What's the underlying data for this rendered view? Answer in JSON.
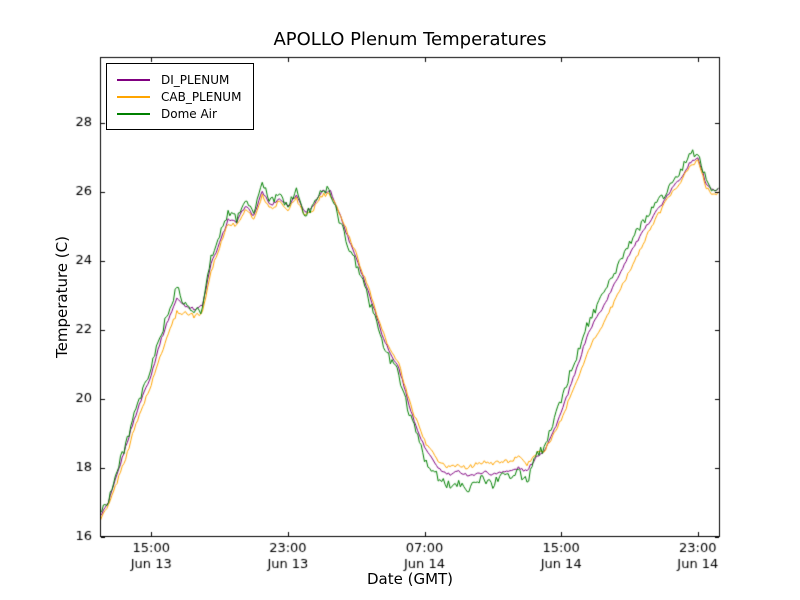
{
  "chart_data": {
    "type": "line",
    "title": "APOLLO Plenum Temperatures",
    "xlabel": "Date (GMT)",
    "ylabel": "Temperature (C)",
    "xlim": [
      0,
      36.3
    ],
    "ylim": [
      16,
      29.9
    ],
    "grid": false,
    "legend_position": "upper-left",
    "axes_color": "#000000",
    "background": "#ffffff",
    "x_axis_note": "x values are hours after Jun 13 12:00 GMT",
    "x_ticks": [
      {
        "t": 3,
        "time": "15:00",
        "date": "Jun 13"
      },
      {
        "t": 11,
        "time": "23:00",
        "date": "Jun 13"
      },
      {
        "t": 19,
        "time": "07:00",
        "date": "Jun 14"
      },
      {
        "t": 27,
        "time": "15:00",
        "date": "Jun 14"
      },
      {
        "t": 35,
        "time": "23:00",
        "date": "Jun 14"
      }
    ],
    "y_ticks": [
      16,
      18,
      20,
      22,
      24,
      26,
      28
    ],
    "series": [
      {
        "name": "DI_PLENUM",
        "color": "#800080",
        "noise": 0.04,
        "seed": 1,
        "points": [
          [
            0,
            16.6
          ],
          [
            0.5,
            17.0
          ],
          [
            1,
            17.8
          ],
          [
            1.5,
            18.6
          ],
          [
            2,
            19.4
          ],
          [
            2.5,
            20.1
          ],
          [
            3,
            20.7
          ],
          [
            3.5,
            21.6
          ],
          [
            4,
            22.3
          ],
          [
            4.5,
            22.9
          ],
          [
            5,
            22.7
          ],
          [
            5.5,
            22.6
          ],
          [
            6,
            22.7
          ],
          [
            6.5,
            23.9
          ],
          [
            7,
            24.5
          ],
          [
            7.5,
            25.2
          ],
          [
            8,
            25.1
          ],
          [
            8.5,
            25.6
          ],
          [
            9,
            25.3
          ],
          [
            9.5,
            26.0
          ],
          [
            10,
            25.6
          ],
          [
            10.5,
            25.8
          ],
          [
            11,
            25.6
          ],
          [
            11.5,
            25.9
          ],
          [
            12,
            25.4
          ],
          [
            12.5,
            25.6
          ],
          [
            13,
            26.0
          ],
          [
            13.5,
            26.0
          ],
          [
            14,
            25.4
          ],
          [
            14.5,
            24.7
          ],
          [
            15,
            24.1
          ],
          [
            15.5,
            23.4
          ],
          [
            16,
            22.7
          ],
          [
            16.5,
            21.9
          ],
          [
            17,
            21.3
          ],
          [
            17.5,
            20.9
          ],
          [
            18,
            20.0
          ],
          [
            18.5,
            19.2
          ],
          [
            19,
            18.6
          ],
          [
            19.5,
            18.2
          ],
          [
            20,
            17.9
          ],
          [
            20.5,
            17.8
          ],
          [
            21,
            17.9
          ],
          [
            21.5,
            17.8
          ],
          [
            22,
            17.8
          ],
          [
            22.5,
            17.9
          ],
          [
            23,
            17.8
          ],
          [
            23.5,
            17.9
          ],
          [
            24,
            17.9
          ],
          [
            24.5,
            18.0
          ],
          [
            25,
            17.9
          ],
          [
            25.5,
            18.3
          ],
          [
            26,
            18.5
          ],
          [
            26.5,
            19.0
          ],
          [
            27,
            19.6
          ],
          [
            27.5,
            20.3
          ],
          [
            28,
            21.0
          ],
          [
            28.5,
            21.8
          ],
          [
            29,
            22.3
          ],
          [
            29.5,
            22.7
          ],
          [
            30,
            23.2
          ],
          [
            30.5,
            23.7
          ],
          [
            31,
            24.2
          ],
          [
            31.5,
            24.6
          ],
          [
            32,
            25.0
          ],
          [
            32.5,
            25.4
          ],
          [
            33,
            25.7
          ],
          [
            33.5,
            26.1
          ],
          [
            34,
            26.4
          ],
          [
            34.5,
            26.8
          ],
          [
            35,
            27.0
          ],
          [
            35.5,
            26.2
          ],
          [
            36,
            26.0
          ],
          [
            36.2,
            26.1
          ]
        ]
      },
      {
        "name": "CAB_PLENUM",
        "color": "#ffa500",
        "noise": 0.06,
        "seed": 2,
        "points": [
          [
            0,
            16.5
          ],
          [
            0.5,
            16.9
          ],
          [
            1,
            17.6
          ],
          [
            1.5,
            18.3
          ],
          [
            2,
            19.1
          ],
          [
            2.5,
            19.8
          ],
          [
            3,
            20.4
          ],
          [
            3.5,
            21.2
          ],
          [
            4,
            21.9
          ],
          [
            4.5,
            22.5
          ],
          [
            5,
            22.5
          ],
          [
            5.5,
            22.4
          ],
          [
            6,
            22.5
          ],
          [
            6.5,
            23.7
          ],
          [
            7,
            24.4
          ],
          [
            7.5,
            25.1
          ],
          [
            8,
            25.0
          ],
          [
            8.5,
            25.5
          ],
          [
            9,
            25.2
          ],
          [
            9.5,
            25.9
          ],
          [
            10,
            25.5
          ],
          [
            10.5,
            25.7
          ],
          [
            11,
            25.5
          ],
          [
            11.5,
            25.8
          ],
          [
            12,
            25.3
          ],
          [
            12.5,
            25.5
          ],
          [
            13,
            25.9
          ],
          [
            13.5,
            25.9
          ],
          [
            14,
            25.4
          ],
          [
            14.5,
            24.8
          ],
          [
            15,
            24.2
          ],
          [
            15.5,
            23.5
          ],
          [
            16,
            22.8
          ],
          [
            16.5,
            22.0
          ],
          [
            17,
            21.4
          ],
          [
            17.5,
            21.0
          ],
          [
            18,
            20.1
          ],
          [
            18.5,
            19.4
          ],
          [
            19,
            18.8
          ],
          [
            19.5,
            18.4
          ],
          [
            20,
            18.1
          ],
          [
            20.5,
            18.0
          ],
          [
            21,
            18.1
          ],
          [
            21.5,
            18.0
          ],
          [
            22,
            18.1
          ],
          [
            22.5,
            18.2
          ],
          [
            23,
            18.1
          ],
          [
            23.5,
            18.2
          ],
          [
            24,
            18.2
          ],
          [
            24.5,
            18.3
          ],
          [
            25,
            18.1
          ],
          [
            25.5,
            18.4
          ],
          [
            26,
            18.5
          ],
          [
            26.5,
            18.9
          ],
          [
            27,
            19.4
          ],
          [
            27.5,
            20.0
          ],
          [
            28,
            20.6
          ],
          [
            28.5,
            21.3
          ],
          [
            29,
            21.8
          ],
          [
            29.5,
            22.2
          ],
          [
            30,
            22.7
          ],
          [
            30.5,
            23.2
          ],
          [
            31,
            23.7
          ],
          [
            31.5,
            24.2
          ],
          [
            32,
            24.7
          ],
          [
            32.5,
            25.2
          ],
          [
            33,
            25.6
          ],
          [
            33.5,
            26.0
          ],
          [
            34,
            26.3
          ],
          [
            34.5,
            26.7
          ],
          [
            35,
            26.9
          ],
          [
            35.5,
            26.1
          ],
          [
            36,
            25.9
          ],
          [
            36.2,
            26.0
          ]
        ]
      },
      {
        "name": "Dome Air",
        "color": "#008000",
        "noise": 0.13,
        "seed": 3,
        "points": [
          [
            0,
            16.7
          ],
          [
            0.5,
            17.1
          ],
          [
            1,
            17.9
          ],
          [
            1.5,
            18.7
          ],
          [
            2,
            19.5
          ],
          [
            2.5,
            20.2
          ],
          [
            3,
            20.9
          ],
          [
            3.5,
            21.8
          ],
          [
            4,
            22.5
          ],
          [
            4.5,
            23.2
          ],
          [
            5,
            22.7
          ],
          [
            5.5,
            22.5
          ],
          [
            6,
            22.6
          ],
          [
            6.5,
            24.1
          ],
          [
            7,
            24.8
          ],
          [
            7.5,
            25.4
          ],
          [
            8,
            25.2
          ],
          [
            8.5,
            25.8
          ],
          [
            9,
            25.4
          ],
          [
            9.5,
            26.2
          ],
          [
            10,
            25.7
          ],
          [
            10.5,
            25.9
          ],
          [
            11,
            25.6
          ],
          [
            11.5,
            26.0
          ],
          [
            12,
            25.3
          ],
          [
            12.5,
            25.6
          ],
          [
            13,
            26.1
          ],
          [
            13.5,
            26.0
          ],
          [
            14,
            25.2
          ],
          [
            14.5,
            24.5
          ],
          [
            15,
            23.9
          ],
          [
            15.5,
            23.2
          ],
          [
            16,
            22.5
          ],
          [
            16.5,
            21.7
          ],
          [
            17,
            21.1
          ],
          [
            17.5,
            20.7
          ],
          [
            18,
            19.8
          ],
          [
            18.5,
            19.0
          ],
          [
            19,
            18.3
          ],
          [
            19.5,
            17.9
          ],
          [
            20,
            17.6
          ],
          [
            20.5,
            17.5
          ],
          [
            21,
            17.6
          ],
          [
            21.5,
            17.4
          ],
          [
            22,
            17.6
          ],
          [
            22.5,
            17.7
          ],
          [
            23,
            17.5
          ],
          [
            23.5,
            17.8
          ],
          [
            24,
            17.8
          ],
          [
            24.5,
            17.9
          ],
          [
            25,
            17.6
          ],
          [
            25.5,
            18.3
          ],
          [
            26,
            18.6
          ],
          [
            26.5,
            19.3
          ],
          [
            27,
            20.0
          ],
          [
            27.5,
            20.7
          ],
          [
            28,
            21.4
          ],
          [
            28.5,
            22.1
          ],
          [
            29,
            22.6
          ],
          [
            29.5,
            23.0
          ],
          [
            30,
            23.5
          ],
          [
            30.5,
            24.0
          ],
          [
            31,
            24.5
          ],
          [
            31.5,
            24.9
          ],
          [
            32,
            25.3
          ],
          [
            32.5,
            25.6
          ],
          [
            33,
            25.9
          ],
          [
            33.5,
            26.3
          ],
          [
            34,
            26.6
          ],
          [
            34.5,
            27.1
          ],
          [
            35,
            27.1
          ],
          [
            35.5,
            26.4
          ],
          [
            36,
            25.9
          ],
          [
            36.2,
            26.1
          ]
        ]
      }
    ]
  }
}
